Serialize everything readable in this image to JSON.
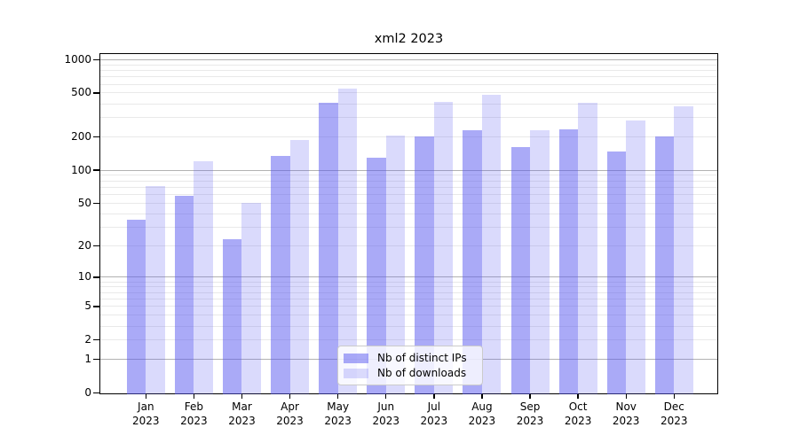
{
  "title": "xml2 2023",
  "chart_data": {
    "type": "bar",
    "title": "xml2 2023",
    "categories": [
      "Jan",
      "Feb",
      "Mar",
      "Apr",
      "May",
      "Jun",
      "Jul",
      "Aug",
      "Sep",
      "Oct",
      "Nov",
      "Dec"
    ],
    "category_year": "2023",
    "series": [
      {
        "name": "Nb of distinct IPs",
        "key": "distinct-ips",
        "color": "rgba(85,85,240,0.5)",
        "values": [
          35,
          59,
          23,
          136,
          405,
          129,
          202,
          230,
          161,
          237,
          149,
          202
        ]
      },
      {
        "name": "Nb of downloads",
        "key": "downloads",
        "color": "rgba(85,85,240,0.22)",
        "values": [
          72,
          120,
          50,
          190,
          545,
          208,
          413,
          480,
          231,
          406,
          285,
          376
        ]
      }
    ],
    "y_scale": "log10(value+1)",
    "ylim": [
      0,
      1000
    ],
    "y_tick_labels": [
      1000,
      500,
      200,
      100,
      50,
      20,
      10,
      5,
      2,
      1,
      0
    ],
    "y_major_gridlines": [
      1,
      10,
      100,
      1000
    ],
    "y_minor_gridlines": [
      2,
      3,
      4,
      5,
      6,
      7,
      8,
      9,
      20,
      30,
      40,
      50,
      60,
      70,
      80,
      90,
      200,
      300,
      400,
      500,
      600,
      700,
      800,
      900
    ],
    "grid": true,
    "legend_position": "lower center"
  },
  "colors": {
    "background": "#ffffff",
    "bar_distinct_ips": "rgba(85,85,240,0.5)",
    "bar_downloads": "rgba(85,85,240,0.22)",
    "grid_major": "#b2b2b2",
    "grid_minor": "#e9e9e9",
    "spine": "#000000",
    "text": "#000000"
  },
  "legend": {
    "items": [
      {
        "label": "Nb of distinct IPs"
      },
      {
        "label": "Nb of downloads"
      }
    ]
  }
}
